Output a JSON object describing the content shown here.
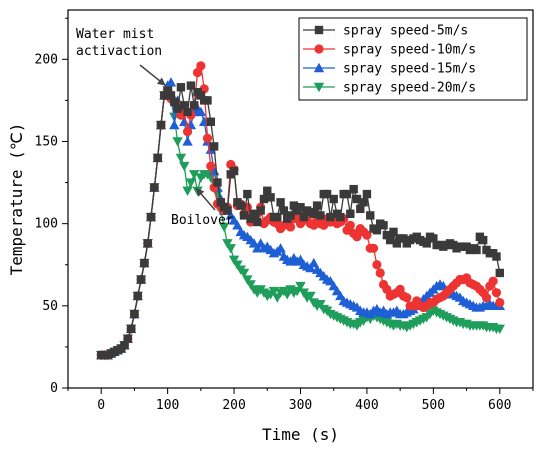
{
  "chart_data": {
    "type": "line",
    "xlabel": "Time (s)",
    "ylabel": "Temperature (℃)",
    "xlim": [
      -50,
      650
    ],
    "ylim": [
      0,
      230
    ],
    "x_ticks": [
      0,
      100,
      200,
      300,
      400,
      500,
      600
    ],
    "y_ticks": [
      0,
      50,
      100,
      150,
      200
    ],
    "grid": false,
    "legend_position": "top-right",
    "annotations": [
      {
        "text": "Water mist\nactivaction",
        "x": 97,
        "y": 184
      },
      {
        "text": "Boilover",
        "x": 180,
        "y": 112
      }
    ],
    "series": [
      {
        "name": "spray speed-5m/s",
        "color": "#3a3a3a",
        "marker": "square",
        "x": [
          0,
          5,
          10,
          15,
          20,
          25,
          30,
          35,
          40,
          45,
          50,
          55,
          60,
          65,
          70,
          75,
          80,
          85,
          90,
          95,
          100,
          105,
          110,
          115,
          120,
          125,
          130,
          135,
          140,
          145,
          150,
          155,
          160,
          165,
          170,
          175,
          180,
          185,
          190,
          195,
          200,
          205,
          210,
          215,
          220,
          225,
          230,
          235,
          240,
          245,
          250,
          255,
          260,
          265,
          270,
          275,
          280,
          285,
          290,
          295,
          300,
          305,
          310,
          315,
          320,
          325,
          330,
          335,
          340,
          345,
          350,
          355,
          360,
          365,
          370,
          375,
          380,
          385,
          390,
          395,
          400,
          405,
          410,
          415,
          420,
          425,
          430,
          435,
          440,
          445,
          450,
          455,
          460,
          465,
          470,
          475,
          480,
          485,
          490,
          495,
          500,
          505,
          510,
          515,
          520,
          525,
          530,
          535,
          540,
          545,
          550,
          555,
          560,
          565,
          570,
          575,
          580,
          585,
          590,
          595,
          600
        ],
        "y": [
          20,
          20,
          20,
          21,
          22,
          23,
          24,
          26,
          30,
          36,
          45,
          56,
          66,
          76,
          88,
          104,
          122,
          140,
          160,
          178,
          181,
          178,
          174,
          170,
          183,
          172,
          168,
          184,
          172,
          180,
          178,
          175,
          175,
          162,
          147,
          125,
          113,
          110,
          108,
          130,
          132,
          113,
          111,
          105,
          118,
          103,
          106,
          101,
          108,
          115,
          120,
          116,
          104,
          104,
          113,
          108,
          103,
          105,
          111,
          108,
          110,
          104,
          108,
          107,
          106,
          111,
          105,
          118,
          118,
          104,
          115,
          106,
          104,
          118,
          118,
          106,
          121,
          115,
          109,
          113,
          118,
          105,
          97,
          96,
          100,
          99,
          93,
          90,
          95,
          88,
          91,
          91,
          88,
          90,
          91,
          92,
          90,
          89,
          88,
          92,
          91,
          87,
          87,
          86,
          87,
          88,
          87,
          85,
          86,
          86,
          86,
          84,
          85,
          84,
          92,
          90,
          84,
          82,
          82,
          80,
          70
        ]
      },
      {
        "name": "spray speed-10m/s",
        "color": "#ee3333",
        "marker": "circle",
        "x": [
          0,
          5,
          10,
          15,
          20,
          25,
          30,
          35,
          40,
          45,
          50,
          55,
          60,
          65,
          70,
          75,
          80,
          85,
          90,
          95,
          100,
          105,
          110,
          115,
          120,
          125,
          130,
          135,
          140,
          145,
          150,
          155,
          160,
          165,
          170,
          175,
          180,
          185,
          190,
          195,
          200,
          205,
          210,
          215,
          220,
          225,
          230,
          235,
          240,
          245,
          250,
          255,
          260,
          265,
          270,
          275,
          280,
          285,
          290,
          295,
          300,
          305,
          310,
          315,
          320,
          325,
          330,
          335,
          340,
          345,
          350,
          355,
          360,
          365,
          370,
          375,
          380,
          385,
          390,
          395,
          400,
          405,
          410,
          415,
          420,
          425,
          430,
          435,
          440,
          445,
          450,
          455,
          460,
          465,
          470,
          475,
          480,
          485,
          490,
          495,
          500,
          505,
          510,
          515,
          520,
          525,
          530,
          535,
          540,
          545,
          550,
          555,
          560,
          565,
          570,
          575,
          580,
          585,
          590,
          595,
          600
        ],
        "y": [
          20,
          20,
          20,
          21,
          22,
          23,
          24,
          26,
          30,
          36,
          45,
          56,
          66,
          76,
          88,
          104,
          122,
          140,
          160,
          178,
          181,
          176,
          174,
          172,
          166,
          168,
          156,
          166,
          172,
          192,
          196,
          182,
          152,
          135,
          122,
          112,
          110,
          108,
          110,
          136,
          133,
          111,
          112,
          106,
          110,
          101,
          104,
          106,
          110,
          100,
          102,
          104,
          101,
          100,
          97,
          99,
          101,
          98,
          103,
          104,
          100,
          102,
          102,
          100,
          99,
          103,
          100,
          99,
          103,
          101,
          102,
          100,
          101,
          103,
          96,
          99,
          94,
          92,
          97,
          95,
          93,
          85,
          85,
          75,
          70,
          63,
          60,
          56,
          57,
          58,
          60,
          56,
          55,
          50,
          50,
          53,
          50,
          49,
          50,
          52,
          52,
          54,
          55,
          56,
          58,
          60,
          62,
          64,
          66,
          66,
          67,
          64,
          63,
          62,
          60,
          58,
          55,
          62,
          65,
          58,
          52
        ]
      },
      {
        "name": "spray speed-15m/s",
        "color": "#1f5fd6",
        "marker": "triangle-up",
        "x": [
          0,
          5,
          10,
          15,
          20,
          25,
          30,
          35,
          40,
          45,
          50,
          55,
          60,
          65,
          70,
          75,
          80,
          85,
          90,
          95,
          100,
          105,
          110,
          115,
          120,
          125,
          130,
          135,
          140,
          145,
          150,
          155,
          160,
          165,
          170,
          175,
          180,
          185,
          190,
          195,
          200,
          205,
          210,
          215,
          220,
          225,
          230,
          235,
          240,
          245,
          250,
          255,
          260,
          265,
          270,
          275,
          280,
          285,
          290,
          295,
          300,
          305,
          310,
          315,
          320,
          325,
          330,
          335,
          340,
          345,
          350,
          355,
          360,
          365,
          370,
          375,
          380,
          385,
          390,
          395,
          400,
          405,
          410,
          415,
          420,
          425,
          430,
          435,
          440,
          445,
          450,
          455,
          460,
          465,
          470,
          475,
          480,
          485,
          490,
          495,
          500,
          505,
          510,
          515,
          520,
          525,
          530,
          535,
          540,
          545,
          550,
          555,
          560,
          565,
          570,
          575,
          580,
          585,
          590,
          595,
          600
        ],
        "y": [
          20,
          20,
          20,
          21,
          22,
          23,
          24,
          26,
          30,
          36,
          45,
          56,
          66,
          76,
          88,
          104,
          122,
          140,
          160,
          178,
          184,
          186,
          160,
          175,
          170,
          162,
          150,
          160,
          168,
          170,
          168,
          162,
          150,
          145,
          132,
          122,
          115,
          108,
          110,
          105,
          102,
          99,
          95,
          93,
          92,
          90,
          88,
          85,
          88,
          85,
          86,
          84,
          82,
          83,
          85,
          80,
          78,
          77,
          79,
          77,
          78,
          75,
          74,
          73,
          76,
          72,
          70,
          68,
          66,
          65,
          62,
          59,
          56,
          53,
          52,
          51,
          50,
          49,
          47,
          46,
          46,
          45,
          47,
          48,
          46,
          47,
          45,
          46,
          46,
          47,
          45,
          45,
          46,
          47,
          48,
          50,
          52,
          54,
          56,
          58,
          60,
          62,
          63,
          62,
          58,
          57,
          57,
          56,
          55,
          53,
          52,
          51,
          50,
          49,
          49,
          50,
          50,
          51,
          50,
          50,
          50
        ]
      },
      {
        "name": "spray speed-20m/s",
        "color": "#1e9e5a",
        "marker": "triangle-down",
        "x": [
          0,
          5,
          10,
          15,
          20,
          25,
          30,
          35,
          40,
          45,
          50,
          55,
          60,
          65,
          70,
          75,
          80,
          85,
          90,
          95,
          100,
          105,
          110,
          115,
          120,
          125,
          130,
          135,
          140,
          145,
          150,
          155,
          160,
          165,
          170,
          175,
          180,
          185,
          190,
          195,
          200,
          205,
          210,
          215,
          220,
          225,
          230,
          235,
          240,
          245,
          250,
          255,
          260,
          265,
          270,
          275,
          280,
          285,
          290,
          295,
          300,
          305,
          310,
          315,
          320,
          325,
          330,
          335,
          340,
          345,
          350,
          355,
          360,
          365,
          370,
          375,
          380,
          385,
          390,
          395,
          400,
          405,
          410,
          415,
          420,
          425,
          430,
          435,
          440,
          445,
          450,
          455,
          460,
          465,
          470,
          475,
          480,
          485,
          490,
          495,
          500,
          505,
          510,
          515,
          520,
          525,
          530,
          535,
          540,
          545,
          550,
          555,
          560,
          565,
          570,
          575,
          580,
          585,
          590,
          595,
          600
        ],
        "y": [
          20,
          20,
          20,
          21,
          22,
          23,
          24,
          26,
          30,
          36,
          45,
          56,
          66,
          76,
          88,
          104,
          122,
          140,
          160,
          178,
          181,
          175,
          165,
          150,
          140,
          135,
          120,
          125,
          130,
          120,
          128,
          130,
          130,
          128,
          125,
          118,
          108,
          98,
          88,
          85,
          78,
          75,
          72,
          70,
          66,
          63,
          60,
          58,
          60,
          58,
          56,
          57,
          59,
          55,
          58,
          59,
          57,
          60,
          58,
          59,
          62,
          58,
          55,
          56,
          52,
          50,
          51,
          48,
          47,
          45,
          44,
          43,
          42,
          41,
          40,
          39,
          39,
          38,
          40,
          41,
          43,
          42,
          44,
          43,
          42,
          41,
          40,
          39,
          38,
          39,
          38,
          38,
          37,
          38,
          39,
          40,
          41,
          42,
          43,
          45,
          47,
          46,
          45,
          44,
          43,
          42,
          41,
          40,
          40,
          39,
          39,
          38,
          38,
          38,
          38,
          38,
          37,
          37,
          37,
          36,
          36
        ]
      }
    ]
  }
}
